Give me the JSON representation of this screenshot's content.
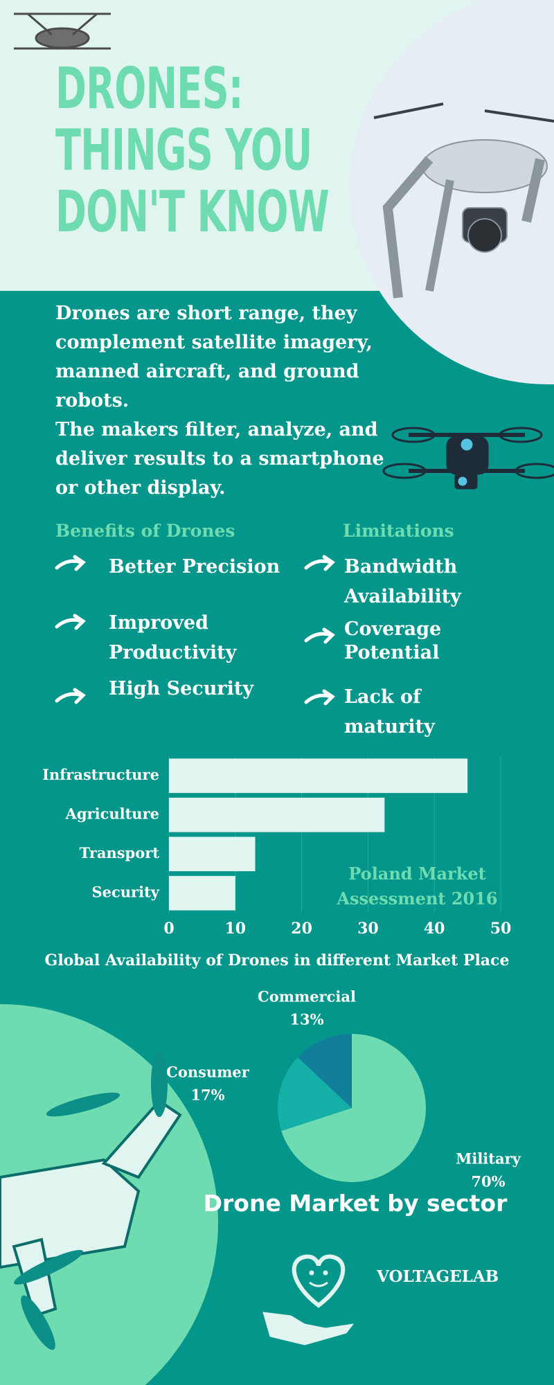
{
  "header": {
    "title": [
      "DRONES:",
      "THINGS YOU",
      "DON'T KNOW"
    ]
  },
  "intro": [
    "Drones are short range, they complement satellite imagery, manned aircraft, and ground robots.",
    "The makers filter, analyze, and deliver results to a smartphone or other display."
  ],
  "benefits": {
    "title": "Benefits of Drones",
    "items": [
      "Better Precision",
      "Improved Productivity",
      "High Security"
    ]
  },
  "limitations": {
    "title": "Limitations",
    "items": [
      "Bandwidth Availability",
      "Coverage Potential",
      "Lack of maturity"
    ]
  },
  "chart_data": [
    {
      "type": "bar",
      "orientation": "horizontal",
      "categories": [
        "Infrastructure",
        "Agriculture",
        "Transport",
        "Security"
      ],
      "values": [
        45,
        32.5,
        13,
        10
      ],
      "color": "#e0f5ef",
      "xlim": [
        0,
        50
      ],
      "xticks": [
        0,
        10,
        20,
        30,
        40,
        50
      ],
      "grid": true,
      "annotation": "Poland Market Assessment 2016"
    },
    {
      "type": "pie",
      "title": "Drone Market by sector",
      "subtitle": "Global Availability of Drones in different Market Place",
      "categories": [
        "Military",
        "Consumer",
        "Commercial"
      ],
      "values": [
        70,
        17,
        13
      ],
      "value_labels": [
        "70%",
        "17%",
        "13%"
      ],
      "colors": [
        "#6edcb0",
        "#14b0a8",
        "#127f9a"
      ]
    }
  ],
  "footer": {
    "brand": "VOLTAGELAB"
  }
}
